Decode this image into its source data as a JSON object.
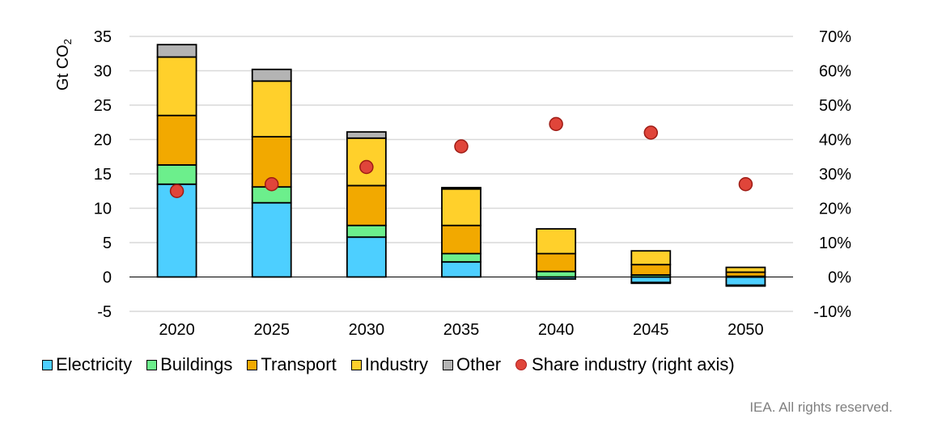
{
  "chart_data": {
    "type": "bar",
    "stacked": true,
    "categories": [
      "2020",
      "2025",
      "2030",
      "2035",
      "2040",
      "2045",
      "2050"
    ],
    "series": [
      {
        "name": "Electricity",
        "color": "#4dcfff",
        "values": [
          13.5,
          10.8,
          5.8,
          2.2,
          -0.3,
          -0.8,
          -1.2
        ]
      },
      {
        "name": "Buildings",
        "color": "#6cef8c",
        "values": [
          2.8,
          2.3,
          1.7,
          1.2,
          0.8,
          0.3,
          0.1
        ]
      },
      {
        "name": "Transport",
        "color": "#f2a900",
        "values": [
          7.2,
          7.3,
          5.8,
          4.1,
          2.6,
          1.5,
          0.6
        ]
      },
      {
        "name": "Industry",
        "color": "#ffd02b",
        "values": [
          8.5,
          8.1,
          6.9,
          5.3,
          3.6,
          2.0,
          0.7
        ]
      },
      {
        "name": "Other",
        "color": "#b4b4b4",
        "values": [
          1.8,
          1.7,
          0.9,
          0.2,
          0.0,
          -0.1,
          -0.1
        ]
      }
    ],
    "line_series": {
      "name": "Share industry (right axis)",
      "color": "#e0453a",
      "axis": "right",
      "values": [
        25,
        27,
        32,
        38,
        44.5,
        42,
        27
      ]
    },
    "ylabel": "Gt CO",
    "ylabel_sub": "2",
    "ylim": [
      -5,
      35
    ],
    "yticks": [
      -5,
      0,
      5,
      10,
      15,
      20,
      25,
      30,
      35
    ],
    "y2lim": [
      -10,
      70
    ],
    "y2ticks": [
      "-10%",
      "0%",
      "10%",
      "20%",
      "30%",
      "40%",
      "50%",
      "60%",
      "70%"
    ],
    "grid": true,
    "legend_position": "bottom"
  },
  "footer": "IEA. All rights reserved."
}
